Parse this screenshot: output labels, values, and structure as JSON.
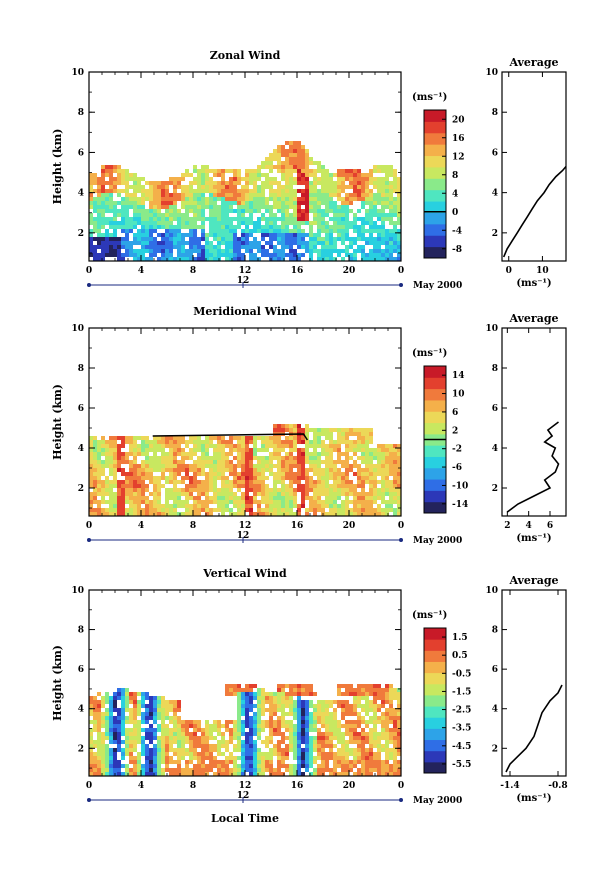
{
  "x_label": "Local Time",
  "colors": {
    "colormap": [
      "#23235c",
      "#2c38b8",
      "#2f6ee6",
      "#2da3e8",
      "#28d0e0",
      "#4fe6c0",
      "#8aea8a",
      "#c8e860",
      "#ecd858",
      "#f4b04a",
      "#f07a3c",
      "#e3402e",
      "#c81a28"
    ]
  },
  "chart_data": [
    {
      "type": "heatmap",
      "title": "Zonal Wind",
      "ylabel": "Height (km)",
      "ylim": [
        0.6,
        10
      ],
      "yticks": [
        "2",
        "4",
        "6",
        "8",
        "10"
      ],
      "xlim": [
        0,
        24
      ],
      "xticks": [
        "0",
        "4",
        "8",
        "12",
        "16",
        "20",
        "0"
      ],
      "date_marker": "12",
      "date_label": "May 2000",
      "colorbar": {
        "unit": "(ms⁻¹)",
        "ticks": [
          "20",
          "16",
          "12",
          "8",
          "4",
          "0",
          "-4",
          "-8"
        ],
        "range": [
          -10,
          22
        ],
        "contour": 0
      },
      "profile": {
        "title": "Average",
        "xlabel": "(ms⁻¹)",
        "xticks": [
          "0",
          "10"
        ],
        "xlim": [
          -2,
          17
        ],
        "yticks": [
          "2",
          "4",
          "6",
          "8",
          "10"
        ],
        "points": [
          [
            -1.5,
            0.8
          ],
          [
            -0.5,
            1.2
          ],
          [
            1,
            1.6
          ],
          [
            2.5,
            2.0
          ],
          [
            4,
            2.4
          ],
          [
            5.5,
            2.8
          ],
          [
            7,
            3.2
          ],
          [
            8.5,
            3.6
          ],
          [
            10.5,
            4.0
          ],
          [
            12,
            4.4
          ],
          [
            14,
            4.8
          ],
          [
            16,
            5.1
          ],
          [
            17,
            5.3
          ]
        ]
      }
    },
    {
      "type": "heatmap",
      "title": "Meridional Wind",
      "ylabel": "Height (km)",
      "ylim": [
        0.6,
        10
      ],
      "yticks": [
        "2",
        "4",
        "6",
        "8",
        "10"
      ],
      "xlim": [
        0,
        24
      ],
      "xticks": [
        "0",
        "4",
        "8",
        "12",
        "16",
        "20",
        "0"
      ],
      "date_marker": "12",
      "date_label": "May 2000",
      "colorbar": {
        "unit": "(ms⁻¹)",
        "ticks": [
          "14",
          "10",
          "6",
          "2",
          "-2",
          "-6",
          "-10",
          "-14"
        ],
        "range": [
          -16,
          16
        ],
        "contour": 0
      },
      "profile": {
        "title": "Average",
        "xlabel": "(ms⁻¹)",
        "xticks": [
          "2",
          "4",
          "6"
        ],
        "xlim": [
          1.5,
          7.5
        ],
        "yticks": [
          "2",
          "4",
          "6",
          "8",
          "10"
        ],
        "points": [
          [
            2,
            0.8
          ],
          [
            3,
            1.2
          ],
          [
            4.5,
            1.6
          ],
          [
            6,
            2.0
          ],
          [
            5.5,
            2.4
          ],
          [
            6.5,
            2.8
          ],
          [
            6.8,
            3.2
          ],
          [
            6.2,
            3.6
          ],
          [
            6.5,
            4.0
          ],
          [
            5.5,
            4.3
          ],
          [
            6.2,
            4.6
          ],
          [
            5.8,
            4.9
          ],
          [
            6.8,
            5.3
          ]
        ]
      }
    },
    {
      "type": "heatmap",
      "title": "Vertical Wind",
      "ylabel": "Height (km)",
      "ylim": [
        0.6,
        10
      ],
      "yticks": [
        "2",
        "4",
        "6",
        "8",
        "10"
      ],
      "xlim": [
        0,
        24
      ],
      "xticks": [
        "0",
        "4",
        "8",
        "12",
        "16",
        "20",
        "0"
      ],
      "date_marker": "12",
      "date_label": "May 2000",
      "colorbar": {
        "unit": "(ms⁻¹)",
        "ticks": [
          "1.5",
          "0.5",
          "-0.5",
          "-1.5",
          "-2.5",
          "-3.5",
          "-4.5",
          "-5.5"
        ],
        "range": [
          -6,
          2
        ]
      },
      "profile": {
        "title": "Average",
        "xlabel": "(ms⁻¹)",
        "xticks": [
          "-1.4",
          "-0.8"
        ],
        "xlim": [
          -1.5,
          -0.7
        ],
        "yticks": [
          "2",
          "4",
          "6",
          "8",
          "10"
        ],
        "points": [
          [
            -1.45,
            0.8
          ],
          [
            -1.4,
            1.2
          ],
          [
            -1.3,
            1.6
          ],
          [
            -1.2,
            2.0
          ],
          [
            -1.1,
            2.6
          ],
          [
            -1.05,
            3.2
          ],
          [
            -1.0,
            3.8
          ],
          [
            -0.9,
            4.4
          ],
          [
            -0.8,
            4.8
          ],
          [
            -0.75,
            5.2
          ]
        ]
      }
    }
  ]
}
